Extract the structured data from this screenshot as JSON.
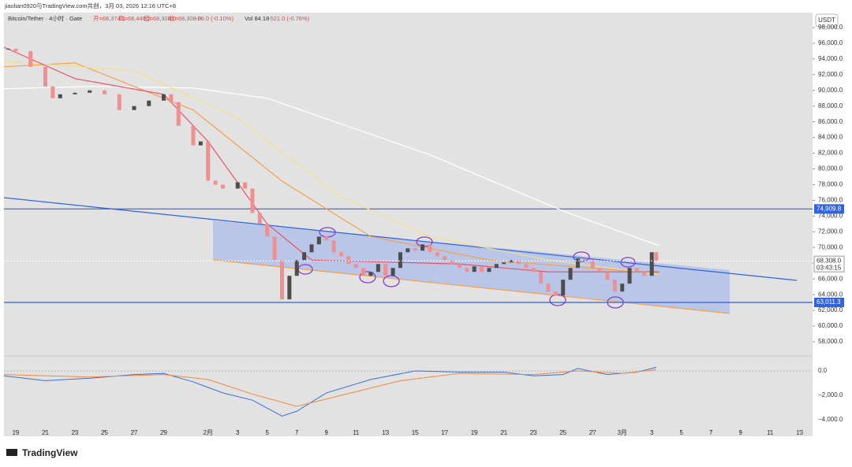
{
  "header": {
    "watermark": "jiaolian0920与TradingView.com共创，3月 03, 2026 12:16 UTC+8",
    "symbol": "Bitcoin/Tether · 4小时 · Gate",
    "open": "开=68,374.1",
    "high": "高=68,449.2",
    "low": "低=68,308.0",
    "close": "收=68,308.0",
    "change": "-66.0 (-0.10%)",
    "vol": "Vol 84.18",
    "vol_change": "-521.0 (-0.76%)",
    "currency": "USDT",
    "brand": "TradingView"
  },
  "chart_data": {
    "type": "candlestick",
    "up_color": "#4d4d4d",
    "down_color": "#ef8f8f",
    "x": [
      -0.5,
      0,
      1,
      2,
      2.5,
      3,
      4,
      5,
      6,
      7,
      8,
      9,
      10,
      10.5,
      11,
      12,
      12.5,
      13,
      13.5,
      14,
      15,
      15.5,
      16,
      16.5,
      17,
      17.5,
      18,
      18.5,
      19,
      19.5,
      20,
      20.5,
      21,
      21.5,
      22,
      22.5,
      23,
      23.5,
      24,
      24.5,
      25,
      25.5,
      26,
      26.5,
      27,
      27.5,
      28,
      28.5,
      29,
      29.5,
      30,
      30.5,
      31,
      31.5,
      32,
      32.5,
      33,
      33.5,
      34,
      34.5,
      35,
      35.5,
      36,
      36.5,
      37,
      37.5,
      38,
      38.5,
      39,
      39.5,
      40,
      40.5,
      41,
      41.5,
      42,
      42.5,
      43,
      43.3
    ],
    "close": [
      95300,
      95000,
      93000,
      90500,
      89000,
      89500,
      89700,
      90000,
      89500,
      87500,
      88000,
      88700,
      89500,
      88500,
      85500,
      83000,
      83500,
      78500,
      78000,
      77500,
      78300,
      77500,
      74400,
      73000,
      71400,
      68400,
      63400,
      66400,
      68400,
      69400,
      70400,
      71400,
      70900,
      69400,
      68900,
      67900,
      67400,
      66400,
      66900,
      67900,
      66400,
      67400,
      69400,
      69900,
      69600,
      70400,
      69400,
      68900,
      68400,
      67900,
      67400,
      66900,
      67600,
      66900,
      67400,
      67900,
      68100,
      68400,
      67900,
      67400,
      66900,
      65400,
      64400,
      63900,
      65900,
      67400,
      68600,
      68400,
      67400,
      66900,
      65900,
      64400,
      65400,
      67400,
      66900,
      66400,
      69400,
      68308
    ],
    "series": [
      {
        "color": "#ffffff",
        "x": [
          -0.8,
          5,
          12,
          17,
          28,
          37,
          43.5
        ],
        "values": [
          90200,
          90500,
          90300,
          89000,
          81800,
          74650,
          70240
        ]
      },
      {
        "color": "#f5a04a",
        "x": [
          -0.8,
          4,
          12,
          18,
          24,
          32,
          43.5
        ],
        "values": [
          93000,
          93500,
          87500,
          78450,
          71400,
          68400,
          66700
        ]
      },
      {
        "color": "#f2e08a",
        "x": [
          -0.8,
          8,
          15,
          22,
          28,
          36,
          43.5
        ],
        "values": [
          93700,
          92500,
          86500,
          76450,
          71400,
          68400,
          66600
        ]
      },
      {
        "color": "#e8556a",
        "x": [
          -0.8,
          4,
          10,
          13,
          17,
          20,
          30,
          36,
          43.5
        ],
        "values": [
          95500,
          91500,
          89500,
          83500,
          73000,
          68400,
          67900,
          66900,
          66900
        ]
      }
    ],
    "levels": [
      {
        "value": 74909.8,
        "label": "74,909.8"
      },
      {
        "value": 63011.3,
        "label": "63,011.3"
      }
    ],
    "last_price": {
      "value": 68308.0,
      "label": "68,308.0"
    },
    "countdown": "03:43:15",
    "xlim": [
      -0.8,
      53.87
    ],
    "xticks": [
      {
        "value": 0,
        "label": "19"
      },
      {
        "value": 2,
        "label": "21"
      },
      {
        "value": 4,
        "label": "23"
      },
      {
        "value": 6,
        "label": "25"
      },
      {
        "value": 8,
        "label": "27"
      },
      {
        "value": 10,
        "label": "29"
      },
      {
        "value": 13,
        "label": "2月"
      },
      {
        "value": 15,
        "label": "3"
      },
      {
        "value": 17,
        "label": "5"
      },
      {
        "value": 19,
        "label": "7"
      },
      {
        "value": 21,
        "label": "9"
      },
      {
        "value": 23,
        "label": "11"
      },
      {
        "value": 25,
        "label": "13"
      },
      {
        "value": 27,
        "label": "15"
      },
      {
        "value": 29,
        "label": "17"
      },
      {
        "value": 31,
        "label": "19"
      },
      {
        "value": 33,
        "label": "21"
      },
      {
        "value": 35,
        "label": "23"
      },
      {
        "value": 37,
        "label": "25"
      },
      {
        "value": 39,
        "label": "27"
      },
      {
        "value": 41,
        "label": "3月"
      },
      {
        "value": 43,
        "label": "3"
      },
      {
        "value": 45,
        "label": "5"
      },
      {
        "value": 47,
        "label": "7"
      },
      {
        "value": 49,
        "label": "9"
      },
      {
        "value": 51,
        "label": "11"
      },
      {
        "value": 53,
        "label": "13"
      }
    ],
    "ylim": [
      56400,
      100500
    ],
    "yticks": [
      {
        "value": 58000,
        "label": "58,000.0"
      },
      {
        "value": 60000,
        "label": "60,000.0"
      },
      {
        "value": 62000,
        "label": "62,000.0"
      },
      {
        "value": 64000,
        "label": "64,000.0"
      },
      {
        "value": 66000,
        "label": "66,000.0"
      },
      {
        "value": 68000,
        "label": "68,000.0"
      },
      {
        "value": 70000,
        "label": "70,000.0"
      },
      {
        "value": 72000,
        "label": "72,000.0"
      },
      {
        "value": 74000,
        "label": "74,000.0"
      },
      {
        "value": 76000,
        "label": "76,000.0"
      },
      {
        "value": 78000,
        "label": "78,000.0"
      },
      {
        "value": 80000,
        "label": "80,000.0"
      },
      {
        "value": 82000,
        "label": "82,000.0"
      },
      {
        "value": 84000,
        "label": "84,000.0"
      },
      {
        "value": 86000,
        "label": "86,000.0"
      },
      {
        "value": 88000,
        "label": "88,000.0"
      },
      {
        "value": 90000,
        "label": "90,000.0"
      },
      {
        "value": 92000,
        "label": "92,000.0"
      },
      {
        "value": 94000,
        "label": "94,000.0"
      },
      {
        "value": 96000,
        "label": "96,000.0"
      },
      {
        "value": 98000,
        "label": "98,000.0"
      }
    ],
    "macd": {
      "ylim": [
        -4774,
        1032
      ],
      "yticks": [
        {
          "value": 0,
          "label": "0.0"
        },
        {
          "value": -2000,
          "label": "−2,000.0"
        },
        {
          "value": -4000,
          "label": "−4,000.0"
        }
      ],
      "series": [
        {
          "color": "#3b6fd8",
          "x": [
            -0.8,
            2,
            5,
            8,
            10,
            12,
            14,
            16,
            18,
            19,
            21,
            24,
            27,
            30,
            33,
            35,
            37,
            38,
            40,
            42,
            43.3
          ],
          "values": [
            -400,
            -800,
            -600,
            -300,
            -200,
            -900,
            -1800,
            -2400,
            -3700,
            -3300,
            -1800,
            -700,
            0,
            -100,
            -100,
            -400,
            -300,
            200,
            -300,
            -100,
            300
          ]
        },
        {
          "color": "#f08a3c",
          "x": [
            -0.8,
            5,
            10,
            13,
            16,
            19,
            22,
            26,
            30,
            35,
            38,
            41,
            43.3
          ],
          "values": [
            -300,
            -500,
            -300,
            -700,
            -1900,
            -2900,
            -2000,
            -800,
            -200,
            -300,
            0,
            -200,
            100
          ]
        }
      ]
    }
  }
}
